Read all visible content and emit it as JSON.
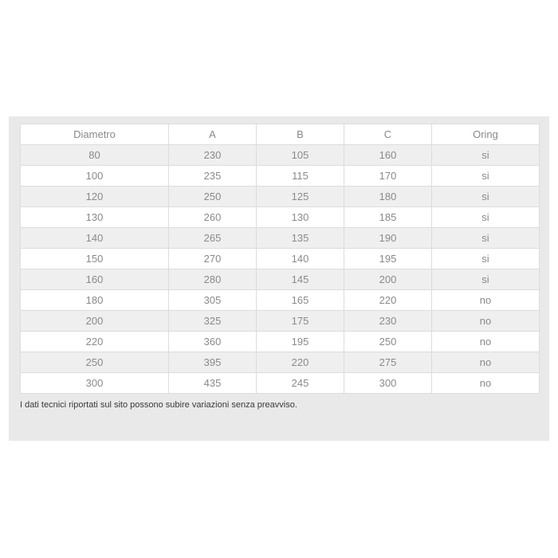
{
  "table": {
    "headers": [
      "Diametro",
      "A",
      "B",
      "C",
      "Oring"
    ],
    "rows": [
      [
        "80",
        "230",
        "105",
        "160",
        "si"
      ],
      [
        "100",
        "235",
        "115",
        "170",
        "si"
      ],
      [
        "120",
        "250",
        "125",
        "180",
        "si"
      ],
      [
        "130",
        "260",
        "130",
        "185",
        "si"
      ],
      [
        "140",
        "265",
        "135",
        "190",
        "si"
      ],
      [
        "150",
        "270",
        "140",
        "195",
        "si"
      ],
      [
        "160",
        "280",
        "145",
        "200",
        "si"
      ],
      [
        "180",
        "305",
        "165",
        "220",
        "no"
      ],
      [
        "200",
        "325",
        "175",
        "230",
        "no"
      ],
      [
        "220",
        "360",
        "195",
        "250",
        "no"
      ],
      [
        "250",
        "395",
        "220",
        "275",
        "no"
      ],
      [
        "300",
        "435",
        "245",
        "300",
        "no"
      ]
    ]
  },
  "note": "I dati tecnici riportati sul sito possono subire variazioni senza preavviso."
}
